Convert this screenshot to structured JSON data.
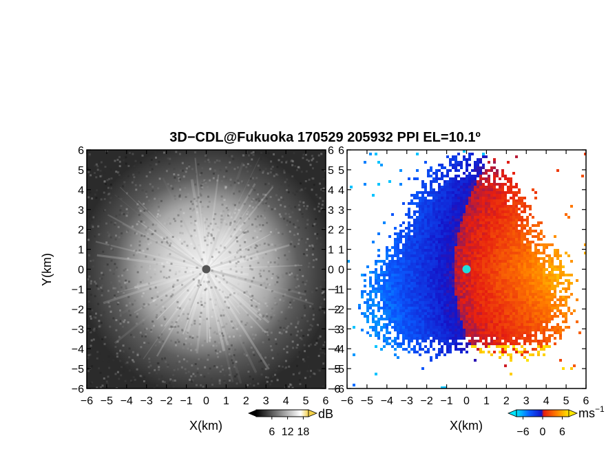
{
  "title": "3D−CDL@Fukuoka 170529 205932 PPI EL=10.1º",
  "chart_data": [
    {
      "type": "heatmap",
      "name": "",
      "xlabel": "X(km)",
      "ylabel": "Y(km)",
      "xlim": [
        -6,
        6
      ],
      "ylim": [
        -6,
        6
      ],
      "x_ticks": [
        "−6",
        "−5",
        "−4",
        "−3",
        "−2",
        "−1",
        "0",
        "1",
        "2",
        "3",
        "4",
        "5",
        "6"
      ],
      "y_ticks": [
        "−6",
        "−5",
        "−4",
        "−3",
        "−2",
        "−1",
        "0",
        "1",
        "2",
        "3",
        "4",
        "5",
        "6"
      ],
      "colorbar": {
        "unit": "dB",
        "ticks": [
          "6",
          "12",
          "18"
        ],
        "tick_values": [
          6,
          12,
          18
        ],
        "range": [
          0,
          20
        ],
        "colors": [
          "#000000",
          "#ffffff",
          "#f2d04a"
        ]
      },
      "data_description": "",
      "center": [
        0,
        0
      ],
      "center_value_color": "#555555"
    },
    {
      "type": "heatmap",
      "name": "",
      "xlabel": "X(km)",
      "ylabel": "",
      "xlim": [
        -6,
        6
      ],
      "ylim": [
        -6,
        6
      ],
      "x_ticks": [
        "−6",
        "−5",
        "−4",
        "−3",
        "−2",
        "−1",
        "0",
        "1",
        "2",
        "3",
        "4",
        "5",
        "6"
      ],
      "y_ticks": [
        "−6",
        "−5",
        "−4",
        "−3",
        "−2",
        "−1",
        "0",
        "1",
        "2",
        "3",
        "4",
        "5",
        "6"
      ],
      "colorbar": {
        "unit": "ms",
        "unit_exponent": "−1",
        "ticks": [
          "−6",
          "0",
          "6"
        ],
        "tick_values": [
          -6,
          0,
          6
        ],
        "range": [
          -8,
          8
        ],
        "colors": [
          "#00e5ff",
          "#0a5cff",
          "#1414c8",
          "#e61e10",
          "#ff7a00",
          "#ffe600"
        ]
      },
      "data_description": "",
      "center": [
        0,
        0
      ],
      "center_value_color": "#22dddd"
    }
  ]
}
